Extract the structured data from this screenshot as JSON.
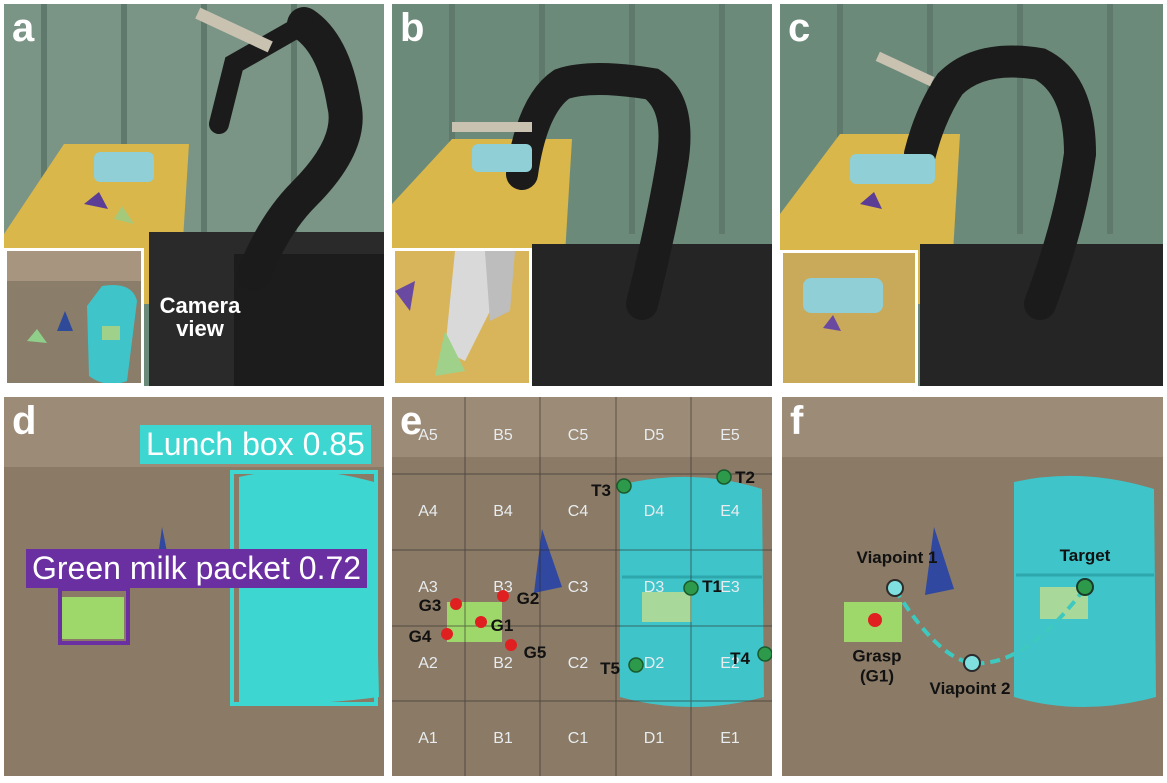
{
  "panels": {
    "a": {
      "label": "a",
      "inset_text_line1": "Camera",
      "inset_text_line2": "view"
    },
    "b": {
      "label": "b"
    },
    "c": {
      "label": "c"
    },
    "d": {
      "label": "d",
      "lunch_box_label": "Lunch box 0.85",
      "milk_label": "Green milk packet 0.72"
    },
    "e": {
      "label": "e"
    },
    "f": {
      "label": "f"
    }
  },
  "grid_cells": [
    {
      "id": "A5",
      "text": "A5"
    },
    {
      "id": "B5",
      "text": "B5"
    },
    {
      "id": "C5",
      "text": "C5"
    },
    {
      "id": "D5",
      "text": "D5"
    },
    {
      "id": "E5",
      "text": "E5"
    },
    {
      "id": "A4",
      "text": "A4"
    },
    {
      "id": "B4",
      "text": "B4"
    },
    {
      "id": "C4",
      "text": "C4"
    },
    {
      "id": "D4",
      "text": "D4"
    },
    {
      "id": "E4",
      "text": "E4"
    },
    {
      "id": "A3",
      "text": "A3"
    },
    {
      "id": "B3",
      "text": "B3"
    },
    {
      "id": "C3",
      "text": "C3"
    },
    {
      "id": "D3",
      "text": "D3"
    },
    {
      "id": "E3",
      "text": "E3"
    },
    {
      "id": "A2",
      "text": "A2"
    },
    {
      "id": "B2",
      "text": "B2"
    },
    {
      "id": "C2",
      "text": "C2"
    },
    {
      "id": "D2",
      "text": "D2"
    },
    {
      "id": "E2",
      "text": "E2"
    },
    {
      "id": "A1",
      "text": "A1"
    },
    {
      "id": "B1",
      "text": "B1"
    },
    {
      "id": "C1",
      "text": "C1"
    },
    {
      "id": "D1",
      "text": "D1"
    },
    {
      "id": "E1",
      "text": "E1"
    }
  ],
  "grasp_points": [
    "G1",
    "G2",
    "G3",
    "G4",
    "G5"
  ],
  "target_points": [
    "T1",
    "T2",
    "T3",
    "T4",
    "T5"
  ],
  "path_labels": {
    "viapoint1": "Viapoint 1",
    "viapoint2": "Viapoint 2",
    "target": "Target",
    "grasp_line1": "Grasp",
    "grasp_line2": "(G1)"
  },
  "colors": {
    "lunch_box": "#3ed6d0",
    "milk_box": "#6a2fa0",
    "grasp": "#e02020",
    "target": "#2c9a4a",
    "path": "#3ec9c0"
  }
}
